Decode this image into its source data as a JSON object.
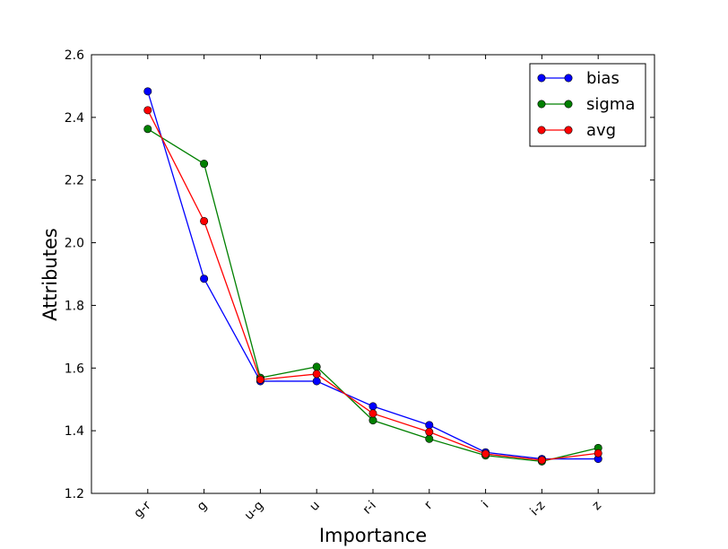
{
  "chart_data": {
    "type": "line",
    "title": "",
    "xlabel": "Importance",
    "ylabel": "Attributes",
    "categories": [
      "g-r",
      "g",
      "u-g",
      "u",
      "r-i",
      "r",
      "i",
      "i-z",
      "z"
    ],
    "ylim": [
      1.2,
      2.6
    ],
    "yticks": [
      "1.2",
      "1.4",
      "1.6",
      "1.8",
      "2.0",
      "2.2",
      "2.4",
      "2.6"
    ],
    "grid": false,
    "legend_position": "top-right",
    "series": [
      {
        "name": "bias",
        "color": "#0000ff",
        "values": [
          2.483,
          1.885,
          1.558,
          1.558,
          1.478,
          1.418,
          1.331,
          1.31,
          1.31
        ]
      },
      {
        "name": "sigma",
        "color": "#008000",
        "values": [
          2.363,
          2.252,
          1.569,
          1.604,
          1.433,
          1.374,
          1.321,
          1.302,
          1.345
        ]
      },
      {
        "name": "avg",
        "color": "#ff0000",
        "values": [
          2.423,
          2.069,
          1.563,
          1.581,
          1.455,
          1.396,
          1.326,
          1.306,
          1.328
        ]
      }
    ]
  }
}
